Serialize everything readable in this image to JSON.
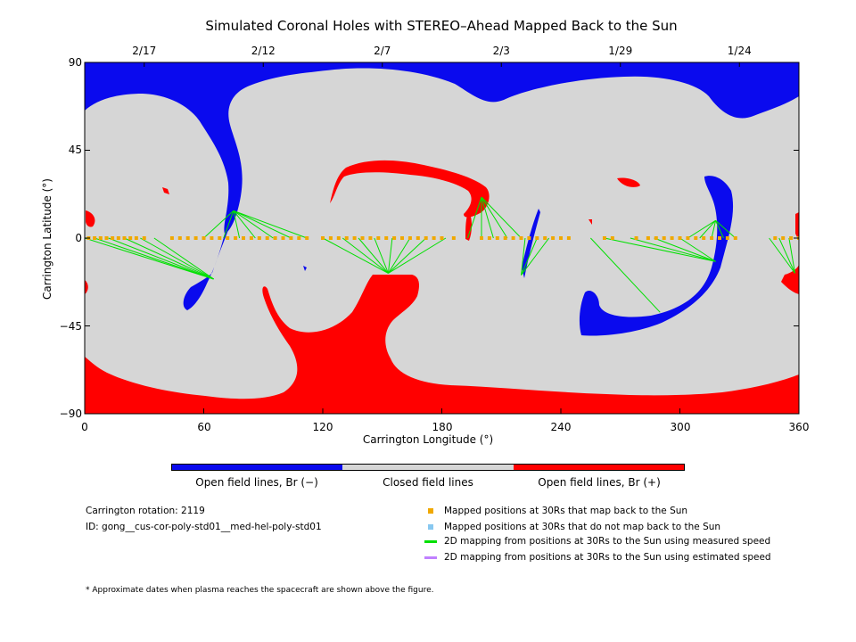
{
  "title": "Simulated Coronal Holes with STEREO–Ahead Mapped Back to the Sun",
  "top_dates": [
    {
      "label": "2/17",
      "lon": 30
    },
    {
      "label": "2/12",
      "lon": 90
    },
    {
      "label": "2/7",
      "lon": 150
    },
    {
      "label": "2/3",
      "lon": 210
    },
    {
      "label": "1/29",
      "lon": 270
    },
    {
      "label": "1/24",
      "lon": 330
    }
  ],
  "axes": {
    "xlabel": "Carrington Longitude (°)",
    "ylabel": "Carrington Latitude (°)",
    "xlim": [
      0,
      360
    ],
    "ylim": [
      -90,
      90
    ],
    "xticks": [
      "0",
      "60",
      "120",
      "180",
      "240",
      "300",
      "360"
    ],
    "yticks": [
      "90",
      "45",
      "0",
      "−45",
      "−90"
    ]
  },
  "colorbar": [
    {
      "label": "Open field lines, Br (−)",
      "color": "#0a0aee"
    },
    {
      "label": "Closed field lines",
      "color": "#d6d6d6"
    },
    {
      "label": "Open field lines, Br (+)",
      "color": "#ff0000"
    }
  ],
  "info": {
    "rotation": "Carrington rotation: 2119",
    "id": "ID: gong__cus-cor-poly-std01__med-hel-poly-std01"
  },
  "legend": [
    {
      "label": "Mapped positions at 30Rs that map back to the Sun",
      "color": "#f0a800",
      "kind": "square"
    },
    {
      "label": "Mapped positions at 30Rs that do not map back to the Sun",
      "color": "#88c8f0",
      "kind": "square"
    },
    {
      "label": "2D mapping from positions at 30Rs to the Sun using measured speed",
      "color": "#00e000",
      "kind": "line"
    },
    {
      "label": "2D mapping from positions at 30Rs to the Sun using estimated speed",
      "color": "#c080ff",
      "kind": "line"
    }
  ],
  "note": "* Approximate dates when plasma reaches the spacecraft are shown above the figure.",
  "colors": {
    "closed": "#d6d6d6",
    "negative": "#0a0aee",
    "positive": "#ff0000",
    "mapped": "#f0a800",
    "measured": "#00e000"
  },
  "chart_data": {
    "type": "map",
    "footpoints": [
      {
        "lon": 65,
        "lat": -21,
        "sources_lon": [
          0,
          5,
          12,
          20,
          28,
          35
        ]
      },
      {
        "lon": 75,
        "lat": 14,
        "sources_lon": [
          60,
          70,
          78,
          86,
          95,
          104,
          112
        ]
      },
      {
        "lon": 153,
        "lat": -18,
        "sources_lon": [
          120,
          130,
          138,
          146,
          155,
          164,
          172,
          182
        ]
      },
      {
        "lon": 200,
        "lat": 21,
        "sources_lon": [
          193,
          200,
          206,
          213,
          220
        ]
      },
      {
        "lon": 220,
        "lat": -19,
        "sources_lon": [
          222,
          228,
          234
        ]
      },
      {
        "lon": 318,
        "lat": 9,
        "sources_lon": [
          304,
          310,
          316,
          322,
          328
        ]
      },
      {
        "lon": 318,
        "lat": -12,
        "sources_lon": [
          262,
          275,
          287,
          300
        ]
      },
      {
        "lon": 290,
        "lat": -38,
        "sources_lon": [
          255
        ]
      },
      {
        "lon": 358,
        "lat": -18,
        "sources_lon": [
          345,
          350,
          355
        ]
      }
    ],
    "mapped_positions_lon": [
      2,
      5,
      8,
      11,
      14,
      17,
      20,
      23,
      26,
      30,
      44,
      48,
      52,
      56,
      60,
      64,
      68,
      72,
      76,
      80,
      84,
      88,
      92,
      96,
      100,
      104,
      108,
      112,
      120,
      124,
      128,
      132,
      136,
      140,
      144,
      148,
      152,
      156,
      160,
      164,
      168,
      172,
      176,
      180,
      186,
      200,
      204,
      208,
      212,
      216,
      220,
      224,
      228,
      232,
      236,
      240,
      244,
      262,
      266,
      278,
      284,
      288,
      292,
      296,
      300,
      304,
      308,
      312,
      316,
      320,
      324,
      328,
      348,
      352,
      356,
      360
    ]
  }
}
